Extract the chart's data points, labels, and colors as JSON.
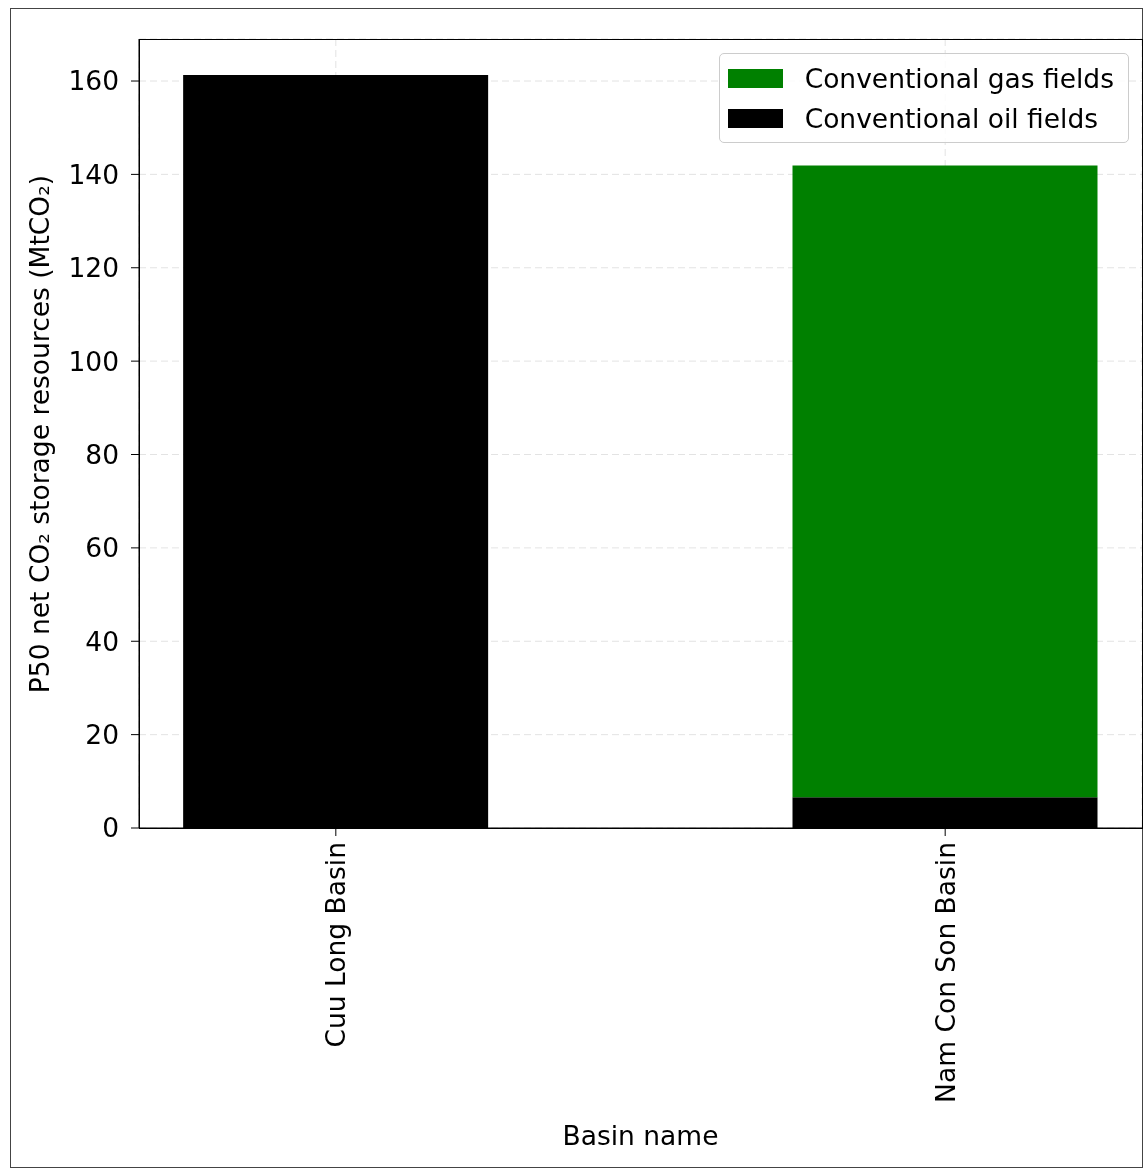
{
  "chart_data": {
    "type": "bar",
    "stacked": true,
    "categories": [
      "Cuu Long Basin",
      "Nam Con Son Basin"
    ],
    "series": [
      {
        "name": "Conventional oil fields",
        "color": "#000000",
        "values": [
          161.3,
          6.6
        ]
      },
      {
        "name": "Conventional gas fields",
        "color": "#008000",
        "values": [
          0,
          135.3
        ]
      }
    ],
    "xlabel": "Basin name",
    "ylabel": "P50 net CO₂ storage resources (MtCO₂)",
    "ylim": [
      0,
      169
    ],
    "yticks": [
      0,
      20,
      40,
      60,
      80,
      100,
      120,
      140,
      160
    ],
    "grid": true,
    "legend": "top right"
  }
}
